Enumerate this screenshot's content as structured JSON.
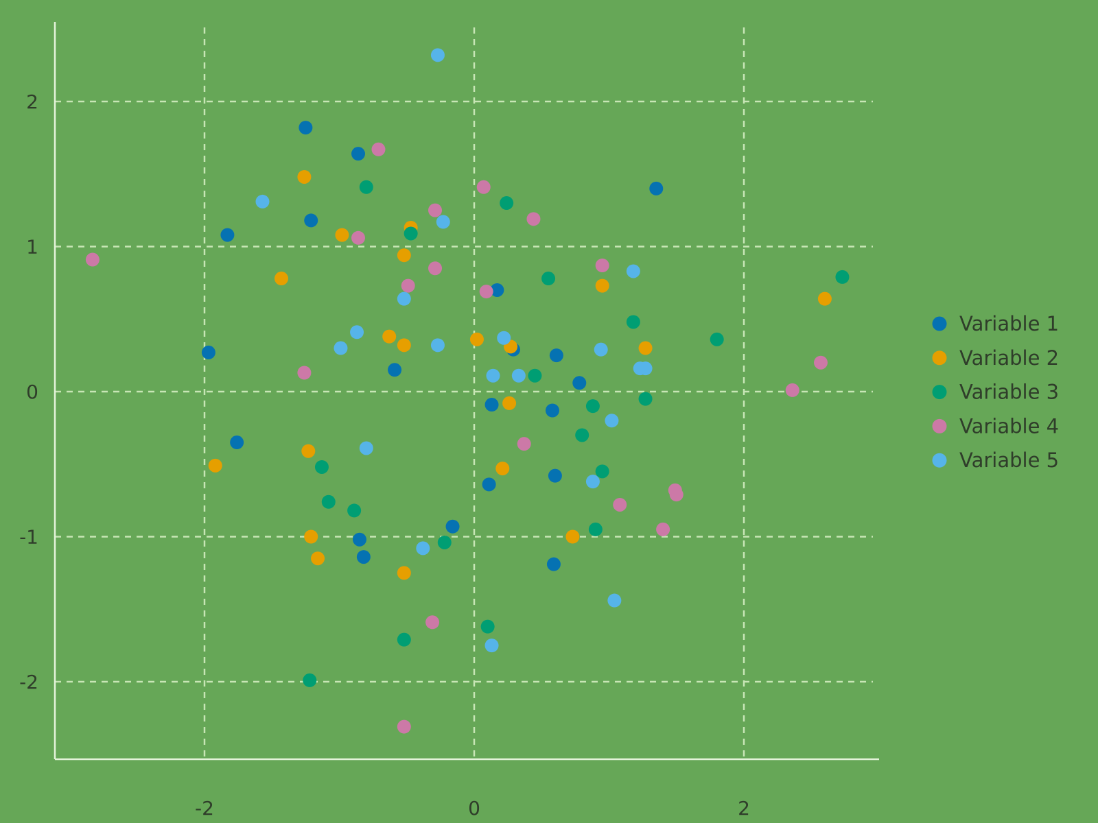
{
  "chart_data": {
    "type": "scatter",
    "xlim": [
      -3.1,
      3.0
    ],
    "ylim": [
      -2.55,
      2.55
    ],
    "x_ticks": [
      -2,
      0,
      2
    ],
    "x_tick_labels": [
      "-2",
      "0",
      "2"
    ],
    "y_ticks": [
      2,
      1,
      0,
      -1,
      -2
    ],
    "y_tick_labels": [
      "2",
      "1",
      "0",
      "-1",
      "-2"
    ],
    "grid": true,
    "legend_position": "right",
    "series": [
      {
        "name": "Variable 1",
        "color": "#0572b2",
        "points": [
          [
            -1.25,
            1.82
          ],
          [
            -0.86,
            1.64
          ],
          [
            1.35,
            1.4
          ],
          [
            -1.21,
            1.18
          ],
          [
            -1.83,
            1.08
          ],
          [
            0.17,
            0.7
          ],
          [
            -1.97,
            0.27
          ],
          [
            0.29,
            0.29
          ],
          [
            0.61,
            0.25
          ],
          [
            -0.59,
            0.15
          ],
          [
            0.78,
            0.06
          ],
          [
            0.13,
            -0.09
          ],
          [
            0.58,
            -0.13
          ],
          [
            -1.76,
            -0.35
          ],
          [
            0.6,
            -0.58
          ],
          [
            0.11,
            -0.64
          ],
          [
            -0.16,
            -0.93
          ],
          [
            -0.85,
            -1.02
          ],
          [
            -0.82,
            -1.14
          ],
          [
            0.59,
            -1.19
          ]
        ]
      },
      {
        "name": "Variable 2",
        "color": "#e69f00",
        "points": [
          [
            -1.26,
            1.48
          ],
          [
            -0.47,
            1.13
          ],
          [
            -0.98,
            1.08
          ],
          [
            -0.52,
            0.94
          ],
          [
            -1.43,
            0.78
          ],
          [
            0.95,
            0.73
          ],
          [
            2.6,
            0.64
          ],
          [
            -0.63,
            0.38
          ],
          [
            0.02,
            0.36
          ],
          [
            -0.52,
            0.32
          ],
          [
            0.27,
            0.31
          ],
          [
            1.27,
            0.3
          ],
          [
            0.26,
            -0.08
          ],
          [
            -1.92,
            -0.51
          ],
          [
            -1.23,
            -0.41
          ],
          [
            0.21,
            -0.53
          ],
          [
            -1.21,
            -1.0
          ],
          [
            0.73,
            -1.0
          ],
          [
            -1.16,
            -1.15
          ],
          [
            -0.52,
            -1.25
          ]
        ]
      },
      {
        "name": "Variable 3",
        "color": "#009e73",
        "points": [
          [
            -0.8,
            1.41
          ],
          [
            0.24,
            1.3
          ],
          [
            -0.47,
            1.09
          ],
          [
            0.55,
            0.78
          ],
          [
            2.73,
            0.79
          ],
          [
            1.18,
            0.48
          ],
          [
            1.8,
            0.36
          ],
          [
            0.45,
            0.11
          ],
          [
            1.27,
            -0.05
          ],
          [
            0.88,
            -0.1
          ],
          [
            0.8,
            -0.3
          ],
          [
            -1.13,
            -0.52
          ],
          [
            0.95,
            -0.55
          ],
          [
            -1.08,
            -0.76
          ],
          [
            -0.89,
            -0.82
          ],
          [
            0.9,
            -0.95
          ],
          [
            -0.22,
            -1.04
          ],
          [
            0.1,
            -1.62
          ],
          [
            -0.52,
            -1.71
          ],
          [
            -1.22,
            -1.99
          ]
        ]
      },
      {
        "name": "Variable 4",
        "color": "#cc79a7",
        "points": [
          [
            -0.71,
            1.67
          ],
          [
            0.07,
            1.41
          ],
          [
            -0.29,
            1.25
          ],
          [
            0.44,
            1.19
          ],
          [
            -0.86,
            1.06
          ],
          [
            -2.83,
            0.91
          ],
          [
            -0.29,
            0.85
          ],
          [
            0.95,
            0.87
          ],
          [
            -0.49,
            0.73
          ],
          [
            0.09,
            0.69
          ],
          [
            2.57,
            0.2
          ],
          [
            -1.26,
            0.13
          ],
          [
            2.36,
            0.01
          ],
          [
            0.37,
            -0.36
          ],
          [
            1.49,
            -0.68
          ],
          [
            1.5,
            -0.71
          ],
          [
            1.08,
            -0.78
          ],
          [
            1.4,
            -0.95
          ],
          [
            -0.31,
            -1.59
          ],
          [
            -0.52,
            -2.31
          ]
        ]
      },
      {
        "name": "Variable 5",
        "color": "#56b4e9",
        "points": [
          [
            -0.27,
            2.32
          ],
          [
            -1.57,
            1.31
          ],
          [
            -0.23,
            1.17
          ],
          [
            1.18,
            0.83
          ],
          [
            -0.52,
            0.64
          ],
          [
            -0.87,
            0.41
          ],
          [
            -0.99,
            0.3
          ],
          [
            -0.27,
            0.32
          ],
          [
            0.22,
            0.37
          ],
          [
            0.94,
            0.29
          ],
          [
            1.23,
            0.16
          ],
          [
            1.27,
            0.16
          ],
          [
            0.14,
            0.11
          ],
          [
            0.33,
            0.11
          ],
          [
            1.02,
            -0.2
          ],
          [
            -0.8,
            -0.39
          ],
          [
            0.88,
            -0.62
          ],
          [
            -0.38,
            -1.08
          ],
          [
            1.04,
            -1.44
          ],
          [
            0.13,
            -1.75
          ]
        ]
      }
    ]
  }
}
